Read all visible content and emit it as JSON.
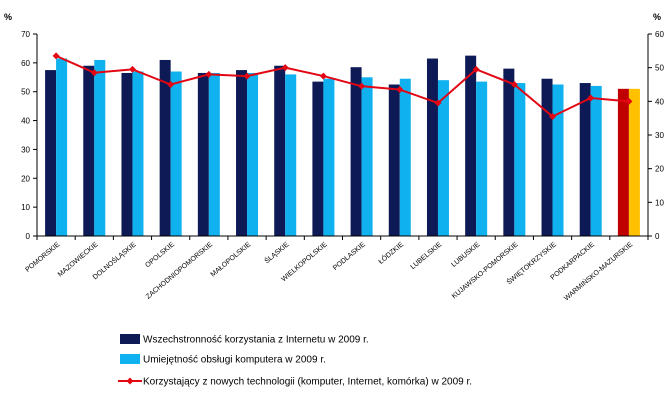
{
  "chart_data": {
    "type": "bar",
    "categories": [
      "POMORSKIE",
      "MAZOWIECKIE",
      "DOLNOŚLĄSKIE",
      "OPOLSKIE",
      "ZACHODNIOPOMORSKIE",
      "MAŁOPOLSKIE",
      "ŚLĄSKIE",
      "WIELKOPOLSKIE",
      "PODLASKIE",
      "ŁÓDZKIE",
      "LUBELSKIE",
      "LUBUSKIE",
      "KUJAWSKO-POMORSKIE",
      "ŚWIĘTOKRZYSKIE",
      "PODKARPACKIE",
      "WARMIŃSKO-MAZURSKIE"
    ],
    "series": [
      {
        "name": "Wszechstronność korzystania z Internetu w 2009 r.",
        "axis": "left",
        "values": [
          57.5,
          59,
          56.5,
          61,
          56.5,
          57.5,
          59,
          53.5,
          58.5,
          52.5,
          61.5,
          62.5,
          58,
          54.5,
          53,
          51
        ],
        "color": "#0d1a56",
        "highlight_color": "#c00000"
      },
      {
        "name": "Umiejętność obsługi komputera w 2009 r.",
        "axis": "left",
        "values": [
          61.5,
          61,
          57,
          57,
          56.5,
          56.5,
          56,
          54.5,
          55,
          54.5,
          54,
          53.5,
          53,
          52.5,
          52,
          51
        ],
        "color": "#0fb1ee",
        "highlight_color": "#ffc000"
      },
      {
        "name": "Korzystający z nowych technologii (komputer, Internet, komórka) w 2009 r.",
        "axis": "right",
        "type": "line",
        "values": [
          53.5,
          48.5,
          49.5,
          45,
          48,
          47.5,
          50,
          47.5,
          44.5,
          43.5,
          39.5,
          49.5,
          45,
          35.5,
          41,
          40
        ],
        "color": "#e30613"
      }
    ],
    "left_axis": {
      "unit": "%",
      "ylim": [
        0,
        70
      ],
      "ticks": [
        0,
        10,
        20,
        30,
        40,
        50,
        60,
        70
      ]
    },
    "right_axis": {
      "unit": "%",
      "ylim": [
        0,
        60
      ],
      "ticks": [
        0,
        10,
        20,
        30,
        40,
        50,
        60
      ]
    },
    "highlight_category": "WARMIŃSKO-MAZURSKIE",
    "legend_position": "bottom",
    "grid": false
  }
}
